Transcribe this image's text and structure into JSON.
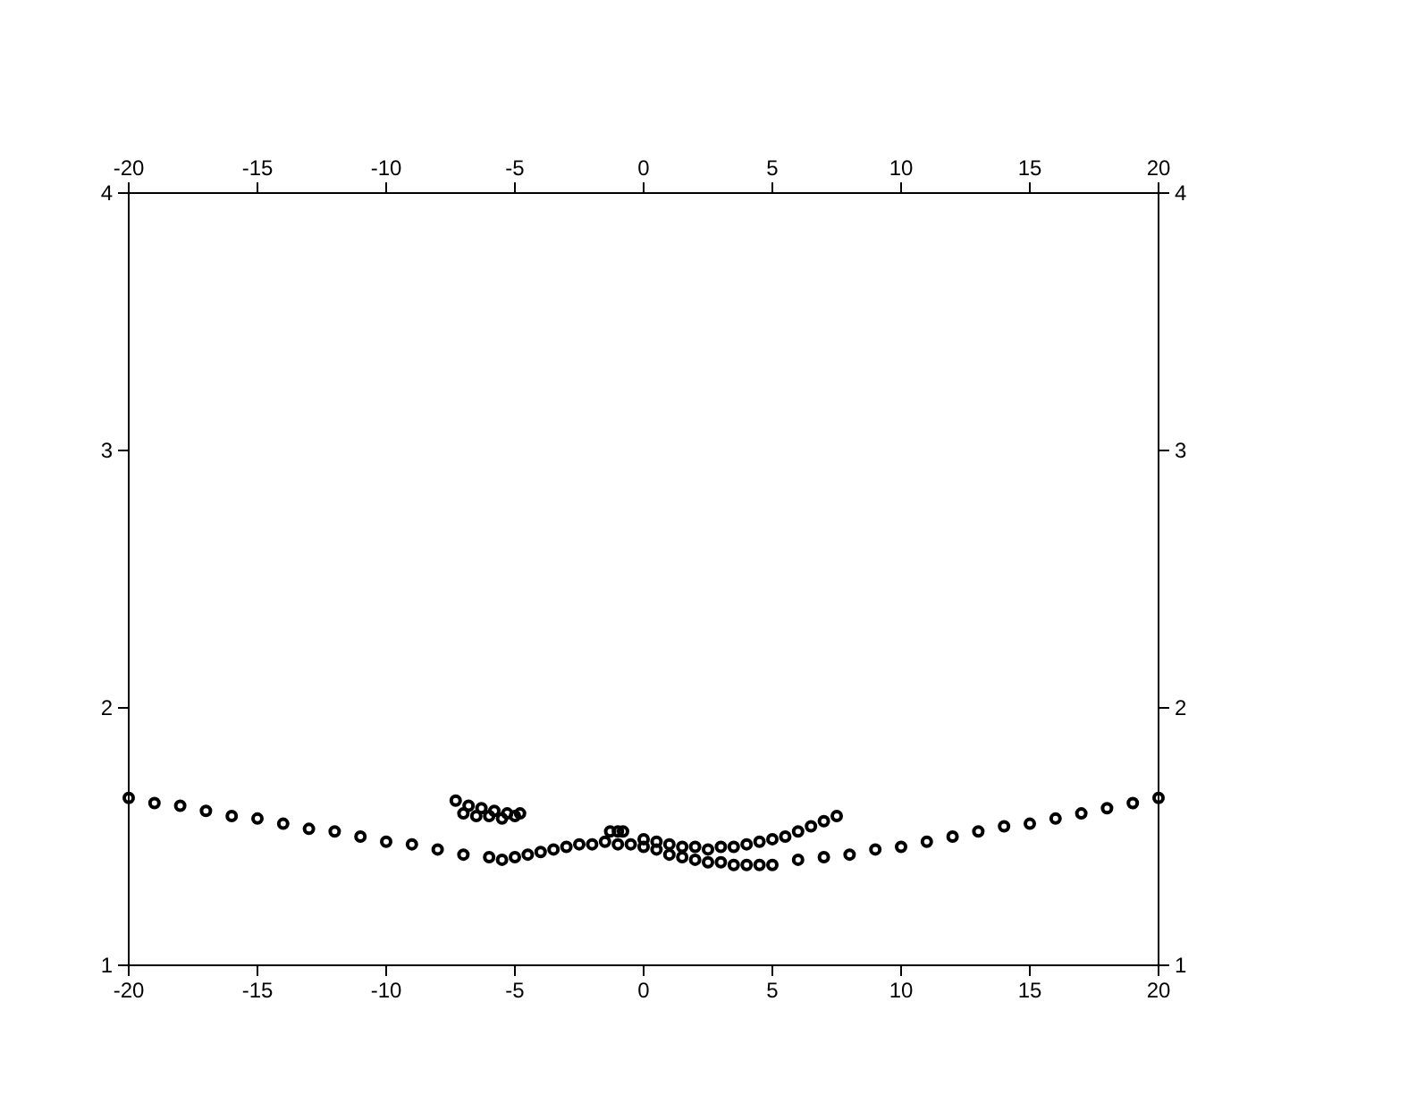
{
  "chart_data": {
    "type": "scatter",
    "marker": "circle",
    "grid": false,
    "series": [
      {
        "color": "#000000",
        "x": [
          -20,
          -19,
          -18,
          -17,
          -16,
          -15,
          -14,
          -13,
          -12,
          -11,
          -10,
          -9,
          -8,
          -7,
          -6,
          -5.5,
          -5,
          -4.5,
          -4,
          -3.5,
          -3,
          -2.5,
          -2,
          -1.5,
          -1,
          -0.5,
          0,
          0.5,
          1,
          1.5,
          2,
          2.5,
          3,
          3.5,
          4,
          4.5,
          5,
          6,
          7,
          8,
          9,
          10,
          11,
          12,
          13,
          14,
          15,
          16,
          17,
          18,
          19,
          20
        ],
        "values": [
          1.65,
          1.63,
          1.62,
          1.6,
          1.58,
          1.57,
          1.55,
          1.53,
          1.52,
          1.5,
          1.48,
          1.47,
          1.45,
          1.43,
          1.42,
          1.41,
          1.42,
          1.43,
          1.44,
          1.45,
          1.46,
          1.47,
          1.47,
          1.48,
          1.47,
          1.47,
          1.46,
          1.45,
          1.43,
          1.42,
          1.41,
          1.4,
          1.4,
          1.39,
          1.39,
          1.39,
          1.39,
          1.41,
          1.42,
          1.43,
          1.45,
          1.46,
          1.48,
          1.5,
          1.52,
          1.54,
          1.55,
          1.57,
          1.59,
          1.61,
          1.63,
          1.65
        ]
      },
      {
        "color": "#000000",
        "x": [
          0,
          0.5,
          1,
          1.5,
          2,
          2.5,
          3,
          3.5,
          4,
          4.5,
          5,
          5.5,
          6,
          6.5,
          7,
          7.5
        ],
        "values": [
          1.49,
          1.48,
          1.47,
          1.46,
          1.46,
          1.45,
          1.46,
          1.46,
          1.47,
          1.48,
          1.49,
          1.5,
          1.52,
          1.54,
          1.56,
          1.58
        ]
      },
      {
        "color": "#000000",
        "x": [
          -7.3,
          -6.8,
          -6.3,
          -5.8,
          -5.3,
          -4.8,
          -7,
          -6.5,
          -6,
          -5.5,
          -5
        ],
        "values": [
          1.64,
          1.62,
          1.61,
          1.6,
          1.59,
          1.59,
          1.59,
          1.58,
          1.58,
          1.57,
          1.58
        ]
      },
      {
        "color": "#000000",
        "x": [
          -1.3,
          -1,
          -0.8
        ],
        "values": [
          1.52,
          1.52,
          1.52
        ]
      }
    ],
    "xlim": [
      -20,
      20
    ],
    "xticks": [
      -20,
      -15,
      -10,
      -5,
      0,
      5,
      10,
      15,
      20
    ],
    "x2lim": [
      -20,
      20
    ],
    "x2ticks": [
      -20,
      -15,
      -10,
      -5,
      0,
      5,
      10,
      15,
      20
    ],
    "ylim": [
      1,
      4
    ],
    "yticks": [
      1,
      2,
      3,
      4
    ],
    "y2lim": [
      1,
      4
    ],
    "y2ticks": [
      1,
      2,
      3,
      4
    ]
  }
}
